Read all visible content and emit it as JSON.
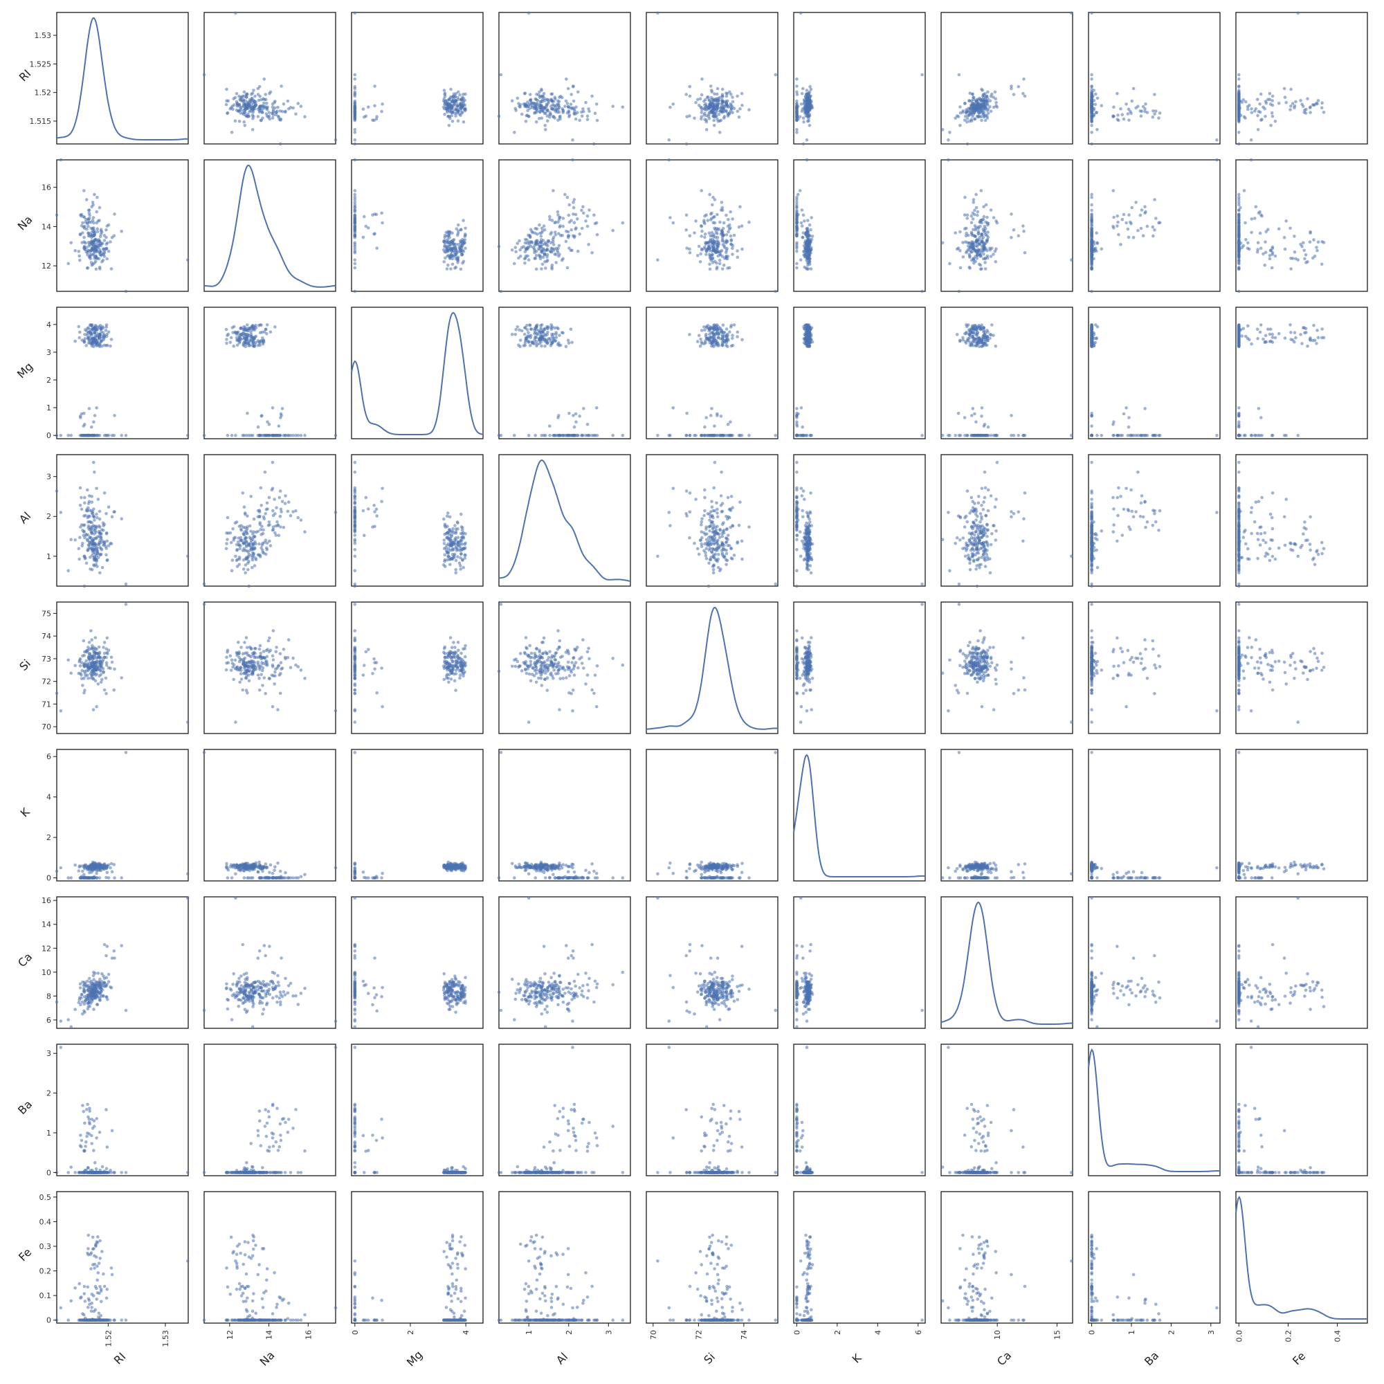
{
  "chart_data": {
    "type": "scatter",
    "variables": [
      "RI",
      "Na",
      "Mg",
      "Al",
      "Si",
      "K",
      "Ca",
      "Ba",
      "Fe"
    ],
    "diagonal": "kde",
    "grid": false,
    "point_color": "#4c72b0",
    "line_color": "#4c72b0",
    "ranges": {
      "RI": [
        1.511,
        1.534
      ],
      "Na": [
        10.7,
        17.4
      ],
      "Mg": [
        -0.12,
        4.62
      ],
      "Al": [
        0.25,
        3.55
      ],
      "Si": [
        69.7,
        75.5
      ],
      "K": [
        -0.15,
        6.35
      ],
      "Ca": [
        5.3,
        16.3
      ],
      "Ba": [
        -0.08,
        3.23
      ],
      "Fe": [
        -0.012,
        0.522
      ]
    },
    "y_ticks": {
      "RI": [
        "1.515",
        "1.52",
        "1.525",
        "1.53"
      ],
      "Na": [
        "12",
        "14",
        "16"
      ],
      "Mg": [
        "0",
        "1",
        "2",
        "3",
        "4"
      ],
      "Al": [
        "1",
        "2",
        "3"
      ],
      "Si": [
        "70",
        "71",
        "72",
        "73",
        "74",
        "75"
      ],
      "K": [
        "0",
        "2",
        "4",
        "6"
      ],
      "Ca": [
        "6",
        "8",
        "10",
        "12",
        "14",
        "16"
      ],
      "Ba": [
        "0",
        "1",
        "2",
        "3"
      ],
      "Fe": [
        "0",
        "0.1",
        "0.2",
        "0.3",
        "0.4",
        "0.5"
      ]
    },
    "x_ticks": {
      "RI": [
        "1.52",
        "1.53"
      ],
      "Na": [
        "12",
        "14",
        "16"
      ],
      "Mg": [
        "0",
        "2",
        "4"
      ],
      "Al": [
        "1",
        "2",
        "3"
      ],
      "Si": [
        "70",
        "72",
        "74"
      ],
      "K": [
        "0",
        "2",
        "4",
        "6"
      ],
      "Ca": [
        "10",
        "15"
      ],
      "Ba": [
        "0",
        "1",
        "2",
        "3"
      ],
      "Fe": [
        "0.0",
        "0.2",
        "0.4"
      ]
    },
    "kde_peaks": {
      "RI": 1.518,
      "Na": 13.1,
      "Mg": 3.5,
      "Al": 1.35,
      "Si": 72.9,
      "K": 0.55,
      "Ca": 8.4,
      "Ba": 0.0,
      "Fe": 0.0
    }
  }
}
